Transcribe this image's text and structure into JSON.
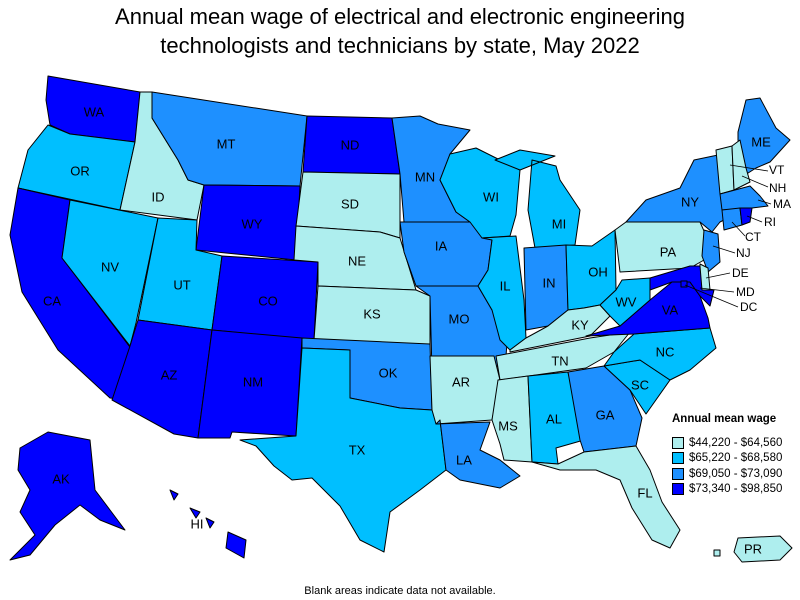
{
  "title_line1": "Annual mean wage of electrical and electronic engineering",
  "title_line2": "technologists and technicians by state, May 2022",
  "footnote": "Blank areas indicate data not available.",
  "legend": {
    "title": "Annual mean wage",
    "items": [
      {
        "label": "$44,220 - $64,560",
        "color": "#aeeeee"
      },
      {
        "label": "$65,220 - $68,580",
        "color": "#00bfff"
      },
      {
        "label": "$69,050 - $73,090",
        "color": "#1e90ff"
      },
      {
        "label": "$73,340 - $98,850",
        "color": "#0000ff"
      }
    ]
  },
  "states": [
    {
      "abbr": "WA",
      "cls": 3
    },
    {
      "abbr": "OR",
      "cls": 1
    },
    {
      "abbr": "CA",
      "cls": 3
    },
    {
      "abbr": "ID",
      "cls": 0
    },
    {
      "abbr": "NV",
      "cls": 1
    },
    {
      "abbr": "MT",
      "cls": 2
    },
    {
      "abbr": "WY",
      "cls": 3
    },
    {
      "abbr": "UT",
      "cls": 1
    },
    {
      "abbr": "AZ",
      "cls": 3
    },
    {
      "abbr": "CO",
      "cls": 3
    },
    {
      "abbr": "NM",
      "cls": 3
    },
    {
      "abbr": "ND",
      "cls": 3
    },
    {
      "abbr": "SD",
      "cls": 0
    },
    {
      "abbr": "NE",
      "cls": 0
    },
    {
      "abbr": "KS",
      "cls": 0
    },
    {
      "abbr": "OK",
      "cls": 2
    },
    {
      "abbr": "TX",
      "cls": 1
    },
    {
      "abbr": "MN",
      "cls": 2
    },
    {
      "abbr": "IA",
      "cls": 2
    },
    {
      "abbr": "MO",
      "cls": 2
    },
    {
      "abbr": "AR",
      "cls": 0
    },
    {
      "abbr": "LA",
      "cls": 2
    },
    {
      "abbr": "WI",
      "cls": 1
    },
    {
      "abbr": "IL",
      "cls": 1
    },
    {
      "abbr": "MI",
      "cls": 1
    },
    {
      "abbr": "IN",
      "cls": 2
    },
    {
      "abbr": "OH",
      "cls": 1
    },
    {
      "abbr": "KY",
      "cls": 0
    },
    {
      "abbr": "TN",
      "cls": 0
    },
    {
      "abbr": "MS",
      "cls": 0
    },
    {
      "abbr": "AL",
      "cls": 1
    },
    {
      "abbr": "GA",
      "cls": 2
    },
    {
      "abbr": "FL",
      "cls": 0
    },
    {
      "abbr": "SC",
      "cls": 1
    },
    {
      "abbr": "NC",
      "cls": 1
    },
    {
      "abbr": "VA",
      "cls": 3
    },
    {
      "abbr": "WV",
      "cls": 1
    },
    {
      "abbr": "PA",
      "cls": 0
    },
    {
      "abbr": "NY",
      "cls": 2
    },
    {
      "abbr": "ME",
      "cls": 2
    },
    {
      "abbr": "VT",
      "cls": 0
    },
    {
      "abbr": "NH",
      "cls": 0
    },
    {
      "abbr": "MA",
      "cls": 2
    },
    {
      "abbr": "RI",
      "cls": 3
    },
    {
      "abbr": "CT",
      "cls": 2
    },
    {
      "abbr": "NJ",
      "cls": 2
    },
    {
      "abbr": "DE",
      "cls": 0
    },
    {
      "abbr": "MD",
      "cls": 3
    },
    {
      "abbr": "DC",
      "cls": 3
    },
    {
      "abbr": "AK",
      "cls": 3
    },
    {
      "abbr": "HI",
      "cls": 3
    },
    {
      "abbr": "PR",
      "cls": 0
    }
  ]
}
